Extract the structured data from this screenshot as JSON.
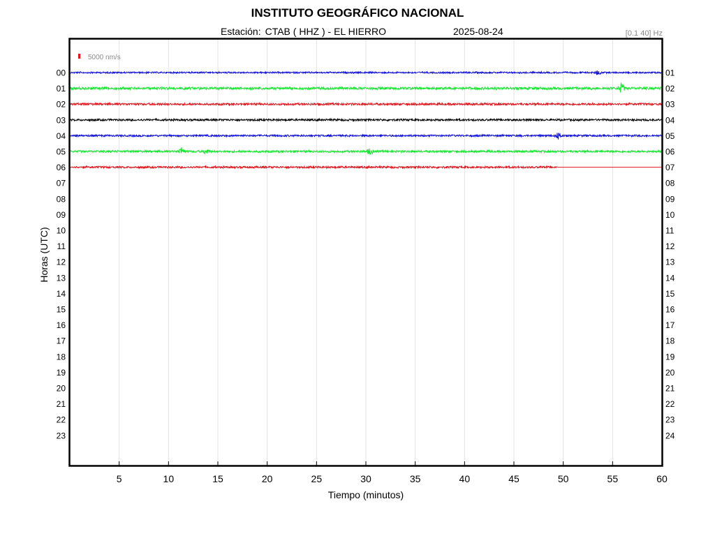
{
  "header": {
    "title": "INSTITUTO GEOGRÁFICO NACIONAL",
    "station_prefix": "Estación:",
    "station_name": "CTAB ( HHZ ) - EL HIERRO",
    "date": "2025-08-24",
    "filter_band": "[0.1 40] Hz"
  },
  "chart_data": {
    "type": "line",
    "subtype": "helicorder",
    "xlabel": "Tiempo (minutos)",
    "ylabel": "Horas (UTC)",
    "xlim": [
      0,
      60
    ],
    "xticks": [
      5,
      10,
      15,
      20,
      25,
      30,
      35,
      40,
      45,
      50,
      55,
      60
    ],
    "left_hour_labels": [
      "00",
      "01",
      "02",
      "03",
      "04",
      "05",
      "06",
      "07",
      "08",
      "09",
      "10",
      "11",
      "12",
      "13",
      "14",
      "15",
      "16",
      "17",
      "18",
      "19",
      "20",
      "21",
      "22",
      "23"
    ],
    "right_hour_labels": [
      "01",
      "02",
      "03",
      "04",
      "05",
      "06",
      "07",
      "08",
      "09",
      "10",
      "11",
      "12",
      "13",
      "14",
      "15",
      "16",
      "17",
      "18",
      "19",
      "20",
      "21",
      "22",
      "23",
      "24"
    ],
    "vertical_grid": true,
    "scale_bar": {
      "label": "5000 nm/s",
      "color": "#e8141b",
      "position": "top-left"
    },
    "trace_colors": [
      "#1010d8",
      "#19e632",
      "#e0151c",
      "#000000"
    ],
    "traces": [
      {
        "hour": "00",
        "color": "#1010d8",
        "end_minute": 60,
        "noise_level": 0.55,
        "events": [
          {
            "minute": 53.5,
            "amp": 1.1
          }
        ]
      },
      {
        "hour": "01",
        "color": "#19e632",
        "end_minute": 60,
        "noise_level": 0.9,
        "events": [
          {
            "minute": 55.9,
            "amp": 2.2
          }
        ]
      },
      {
        "hour": "02",
        "color": "#e0151c",
        "end_minute": 60,
        "noise_level": 0.75,
        "events": []
      },
      {
        "hour": "03",
        "color": "#000000",
        "end_minute": 60,
        "noise_level": 0.7,
        "events": []
      },
      {
        "hour": "04",
        "color": "#1010d8",
        "end_minute": 60,
        "noise_level": 0.65,
        "events": [
          {
            "minute": 49.5,
            "amp": 1.6
          }
        ]
      },
      {
        "hour": "05",
        "color": "#19e632",
        "end_minute": 60,
        "noise_level": 0.75,
        "events": [
          {
            "minute": 11.3,
            "amp": 1.8
          },
          {
            "minute": 13.8,
            "amp": 1.3
          },
          {
            "minute": 30.4,
            "amp": 1.4
          }
        ]
      },
      {
        "hour": "06",
        "color": "#e0151c",
        "end_minute": 49.4,
        "noise_level": 0.7,
        "events": []
      }
    ]
  }
}
